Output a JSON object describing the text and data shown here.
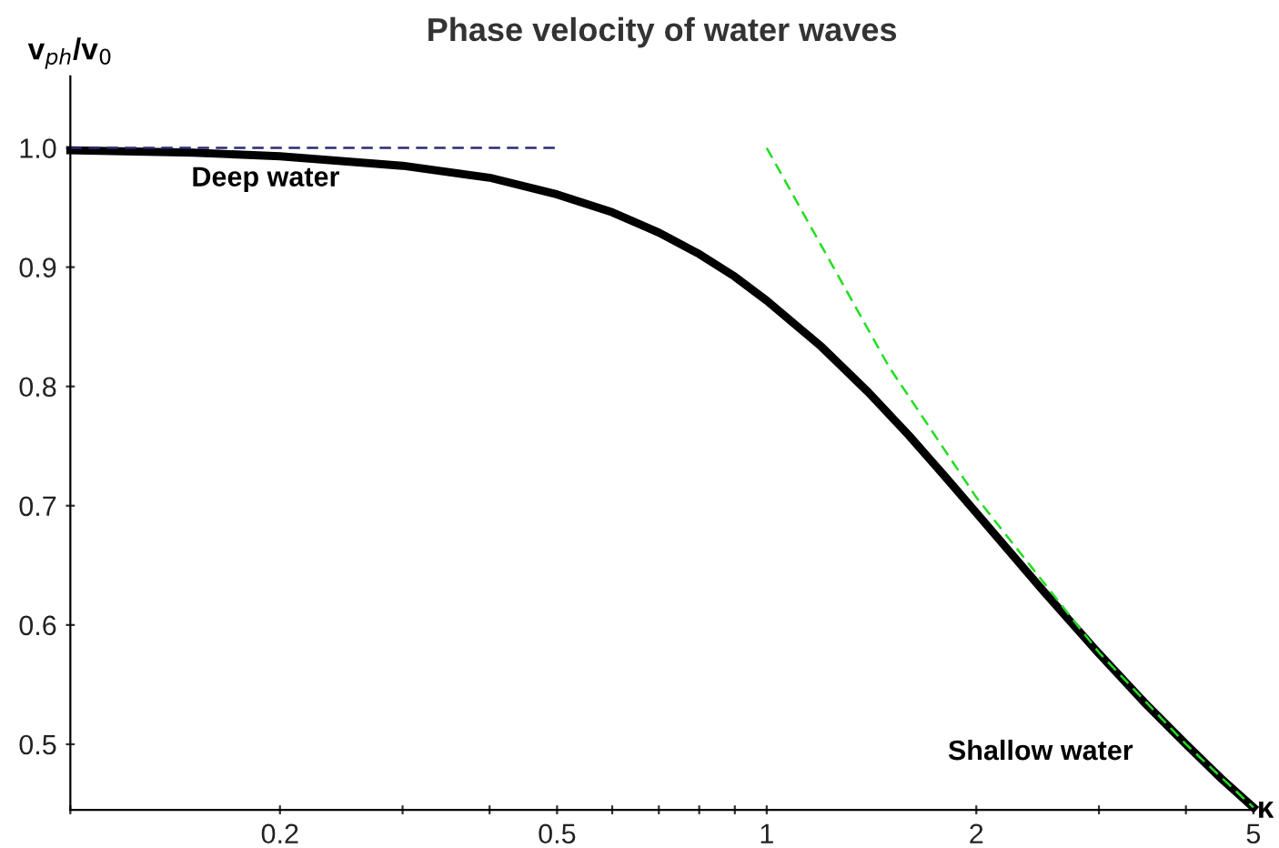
{
  "chart_data": {
    "type": "line",
    "title": "Phase velocity of water waves",
    "xlabel": "κ",
    "ylabel": "v$_{ph}$/v$_{0}$",
    "log": "x",
    "xlim": [
      0.1,
      5
    ],
    "ylim": [
      0.445,
      1.06
    ],
    "xticks": [
      {
        "value": 0.1,
        "label": null
      },
      0.2,
      {
        "value": 0.3,
        "label": null
      },
      {
        "value": 0.4,
        "label": null
      },
      0.5,
      {
        "value": 0.6,
        "label": null
      },
      {
        "value": 0.7,
        "label": null
      },
      {
        "value": 0.8,
        "label": null
      },
      {
        "value": 0.9,
        "label": null
      },
      1,
      2,
      {
        "value": 3,
        "label": null
      },
      {
        "value": 4,
        "label": null
      },
      5
    ],
    "yticks": [
      {
        "value": 0.5,
        "label": "0.5"
      },
      {
        "value": 0.6,
        "label": "0.6"
      },
      {
        "value": 0.7,
        "label": "0.7"
      },
      {
        "value": 0.8,
        "label": "0.8"
      },
      {
        "value": 0.9,
        "label": "0.9"
      },
      {
        "value": 1.0,
        "label": "1.0"
      }
    ],
    "grid": false,
    "legend": false,
    "series": [
      {
        "color": "#000000",
        "line_style": "solid",
        "x": [
          0.1,
          0.15,
          0.2,
          0.3,
          0.4,
          0.5,
          0.6,
          0.7,
          0.8,
          0.9,
          1,
          1.2,
          1.4,
          1.6,
          1.8,
          2,
          2.5,
          3,
          3.5,
          4,
          4.5,
          5
        ],
        "values": [
          0.998,
          0.996,
          0.993,
          0.985,
          0.975,
          0.961,
          0.946,
          0.929,
          0.911,
          0.892,
          0.872,
          0.833,
          0.795,
          0.759,
          0.725,
          0.694,
          0.628,
          0.576,
          0.534,
          0.5,
          0.471,
          0.447
        ]
      },
      {
        "color": "#2b2b70",
        "line_style": "dashed",
        "x": [
          0.1,
          0.5
        ],
        "values": [
          1.0,
          1.0
        ]
      },
      {
        "color": "#22dd22",
        "line_style": "dashed",
        "x": [
          1,
          1.5,
          2,
          3,
          4,
          5
        ],
        "values": [
          1.0,
          0.816,
          0.707,
          0.577,
          0.5,
          0.447
        ]
      }
    ],
    "annotations": [
      "Deep water",
      "Shallow water"
    ]
  }
}
